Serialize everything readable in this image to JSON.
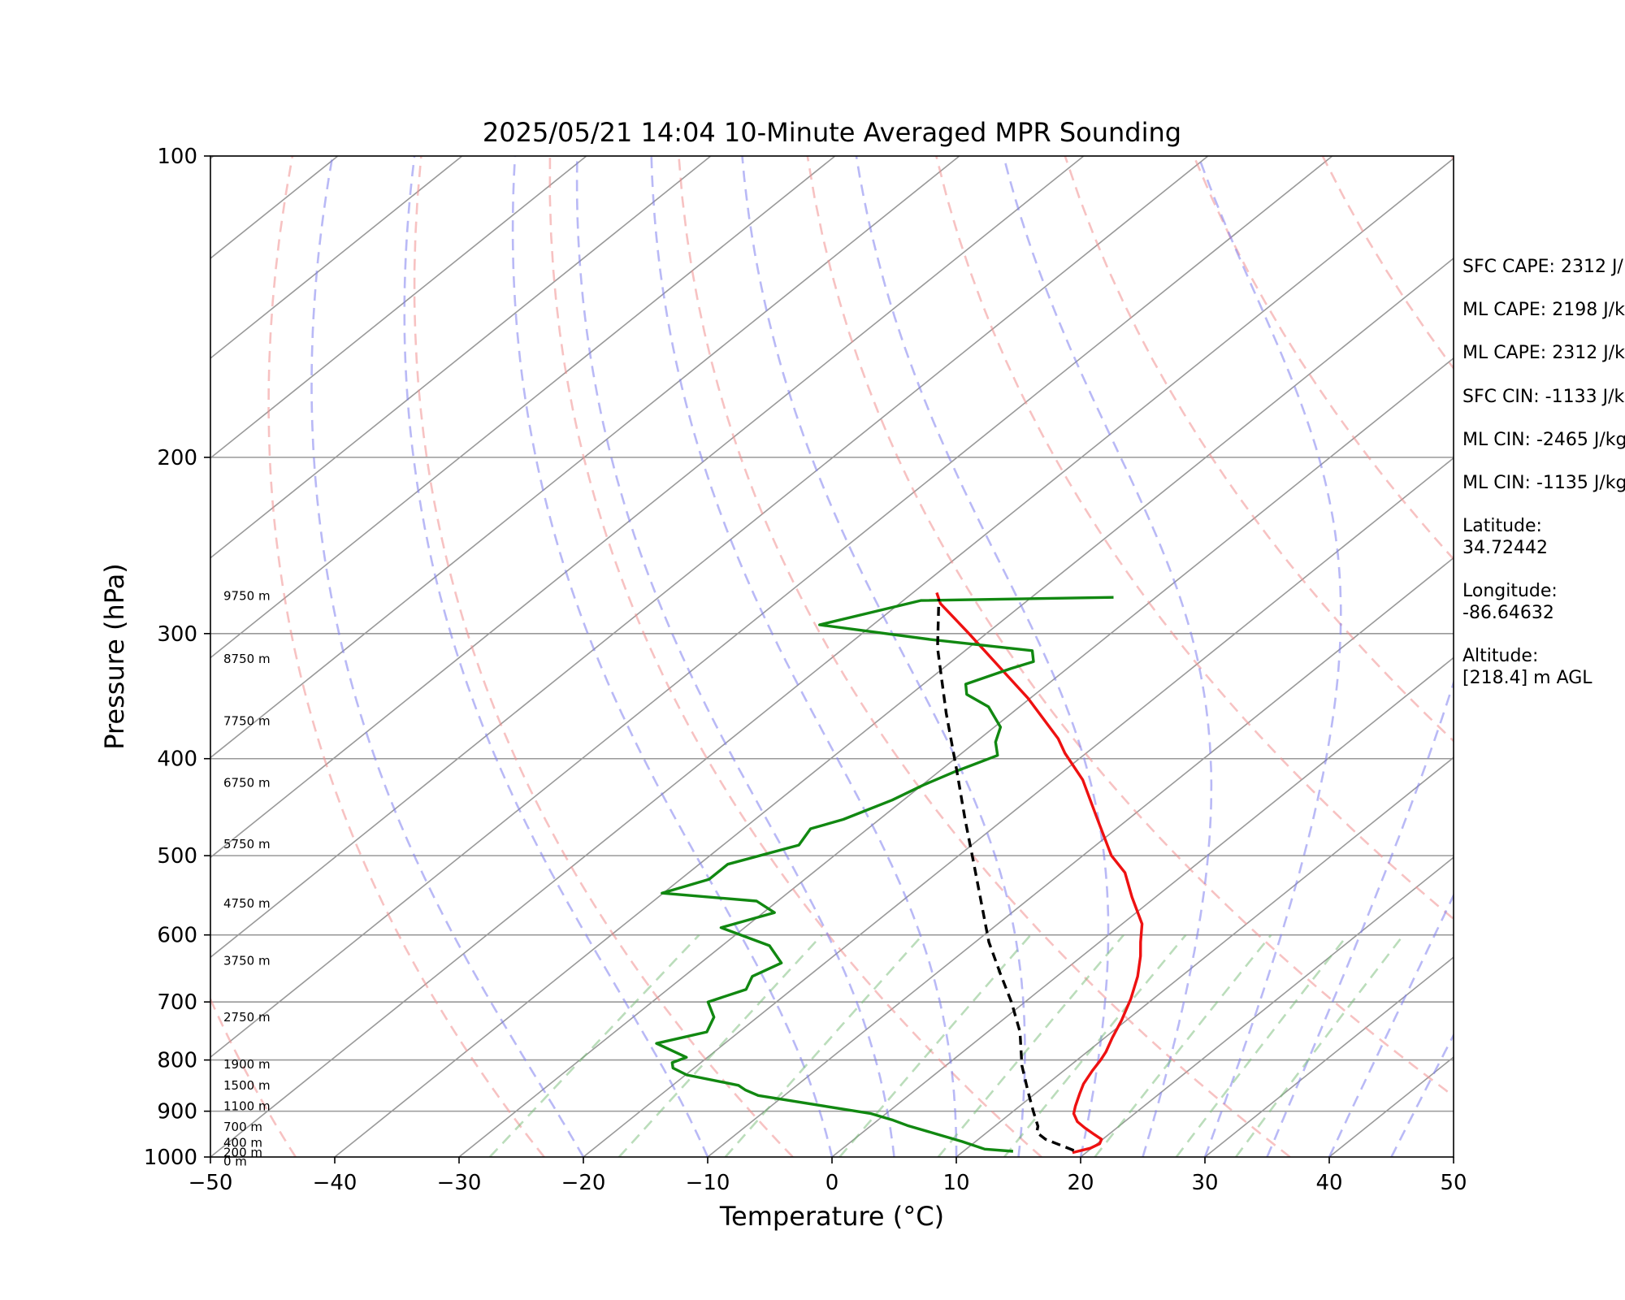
{
  "chart_data": {
    "type": "line",
    "title": "2025/05/21 14:04 10-Minute Averaged MPR Sounding",
    "xlabel": "Temperature (°C)",
    "ylabel": "Pressure (hPa)",
    "xlim": [
      -50,
      50
    ],
    "ylim": [
      1000,
      100
    ],
    "y_scale": "log",
    "x_ticks": [
      "−50",
      "−40",
      "−30",
      "−20",
      "−10",
      "0",
      "10",
      "20",
      "30",
      "40",
      "50"
    ],
    "y_ticks": [
      "100",
      "200",
      "300",
      "400",
      "500",
      "600",
      "700",
      "800",
      "900",
      "1000"
    ],
    "y_tick_values": [
      100,
      200,
      300,
      400,
      500,
      600,
      700,
      800,
      900,
      1000
    ],
    "grid": true,
    "skew": true,
    "height_labels": [
      {
        "text": "9750 m",
        "p": 275
      },
      {
        "text": "8750 m",
        "p": 318
      },
      {
        "text": "7750 m",
        "p": 367
      },
      {
        "text": "6750 m",
        "p": 423
      },
      {
        "text": "5750 m",
        "p": 487
      },
      {
        "text": "4750 m",
        "p": 558
      },
      {
        "text": "3750 m",
        "p": 637
      },
      {
        "text": "2750 m",
        "p": 725
      },
      {
        "text": "1900 m",
        "p": 808
      },
      {
        "text": "1500 m",
        "p": 848
      },
      {
        "text": "1100 m",
        "p": 890
      },
      {
        "text": "700 m",
        "p": 933
      },
      {
        "text": "400 m",
        "p": 968
      },
      {
        "text": "200 m",
        "p": 990
      },
      {
        "text": "0 m",
        "p": 1010
      }
    ],
    "series": [
      {
        "role": "temperature",
        "color": "#ee1111",
        "dash": "solid",
        "points": [
          [
            18.9,
            990
          ],
          [
            19.9,
            980
          ],
          [
            20.2,
            970
          ],
          [
            19.9,
            960
          ],
          [
            18.9,
            950
          ],
          [
            17.4,
            935
          ],
          [
            16.2,
            922
          ],
          [
            15.1,
            905
          ],
          [
            14.5,
            890
          ],
          [
            13.6,
            865
          ],
          [
            12.9,
            845
          ],
          [
            12.3,
            820
          ],
          [
            11.9,
            800
          ],
          [
            11.5,
            785
          ],
          [
            10.6,
            760
          ],
          [
            9.6,
            730
          ],
          [
            8.2,
            695
          ],
          [
            6.5,
            660
          ],
          [
            4.7,
            630
          ],
          [
            3.3,
            610
          ],
          [
            1.6,
            585
          ],
          [
            -1.9,
            550
          ],
          [
            -4.9,
            520
          ],
          [
            -7.7,
            500
          ],
          [
            -12.7,
            458
          ],
          [
            -17.6,
            420
          ],
          [
            -21.7,
            395
          ],
          [
            -23.7,
            382
          ],
          [
            -30.2,
            348
          ],
          [
            -34.9,
            327
          ],
          [
            -41.4,
            300
          ],
          [
            -44.0,
            290
          ],
          [
            -46.7,
            280
          ],
          [
            -48.1,
            273
          ]
        ]
      },
      {
        "role": "dewpoint",
        "color": "#118811",
        "dash": "solid",
        "points": [
          [
            14.0,
            987
          ],
          [
            11.5,
            982
          ],
          [
            8.9,
            965
          ],
          [
            2.9,
            930
          ],
          [
            1.1,
            918
          ],
          [
            -1.2,
            905
          ],
          [
            -12.1,
            868
          ],
          [
            -13.7,
            857
          ],
          [
            -14.7,
            848
          ],
          [
            -19.9,
            828
          ],
          [
            -21.7,
            815
          ],
          [
            -22.3,
            805
          ],
          [
            -21.7,
            795
          ],
          [
            -25.5,
            770
          ],
          [
            -22.6,
            750
          ],
          [
            -23.5,
            725
          ],
          [
            -25.5,
            700
          ],
          [
            -23.7,
            680
          ],
          [
            -24.5,
            660
          ],
          [
            -23.5,
            640
          ],
          [
            -26.2,
            615
          ],
          [
            -31.9,
            590
          ],
          [
            -29.1,
            570
          ],
          [
            -31.7,
            555
          ],
          [
            -40.1,
            545
          ],
          [
            -37.7,
            528
          ],
          [
            -37.7,
            510
          ],
          [
            -33.9,
            488
          ],
          [
            -34.6,
            470
          ],
          [
            -32.9,
            460
          ],
          [
            -30.9,
            440
          ],
          [
            -29.9,
            425
          ],
          [
            -28.7,
            412
          ],
          [
            -26.9,
            397
          ],
          [
            -28.4,
            385
          ],
          [
            -29.5,
            372
          ],
          [
            -32.5,
            355
          ],
          [
            -35.5,
            345
          ],
          [
            -36.6,
            337
          ],
          [
            -34.5,
            325
          ],
          [
            -33.4,
            320
          ],
          [
            -34.6,
            312
          ],
          [
            -44.0,
            304
          ],
          [
            -54.3,
            294
          ],
          [
            -48.6,
            278
          ],
          [
            -33.4,
            276
          ]
        ]
      },
      {
        "role": "parcel",
        "color": "#000000",
        "dash": "dashed",
        "points": [
          [
            18.8,
            985
          ],
          [
            15.4,
            960
          ],
          [
            14.0,
            945
          ],
          [
            13.5,
            932
          ],
          [
            11.6,
            900
          ],
          [
            9.2,
            860
          ],
          [
            6.1,
            810
          ],
          [
            2.6,
            750
          ],
          [
            -1.1,
            700
          ],
          [
            -4.9,
            655
          ],
          [
            -8.9,
            610
          ],
          [
            -13.2,
            560
          ],
          [
            -17.9,
            510
          ],
          [
            -23.1,
            460
          ],
          [
            -28.8,
            410
          ],
          [
            -35.3,
            360
          ],
          [
            -42.5,
            310
          ],
          [
            -47.3,
            277
          ]
        ]
      }
    ],
    "reference_lines": {
      "dry_adiabats_theta_K": [
        190,
        210,
        230,
        250,
        270,
        290,
        310,
        330,
        350,
        370,
        390,
        410,
        430,
        450,
        470
      ],
      "dry_adiabat_color": "#f09090",
      "moist_adiabats_start_C": [
        -20,
        -10,
        0,
        5,
        10,
        15,
        20,
        25,
        30,
        35,
        40,
        45
      ],
      "moist_adiabat_color": "#8080ee",
      "mixing_ratios_gkg": [
        0.4,
        1,
        2,
        4,
        7,
        10,
        16,
        24,
        32
      ],
      "mixing_ratio_color": "#77bb77",
      "isotherm_color": "#999999"
    }
  },
  "parameters": [
    {
      "label": "SFC CAPE: 2312 J/"
    },
    {
      "label": "ML CAPE: 2198 J/k"
    },
    {
      "label": "ML CAPE: 2312 J/k"
    },
    {
      "label": "SFC CIN: -1133 J/k"
    },
    {
      "label": "ML CIN: -2465 J/kg"
    },
    {
      "label": "ML CIN: -1135 J/kg"
    },
    {
      "label": "Latitude:",
      "value": "34.72442"
    },
    {
      "label": "Longitude:",
      "value": "-86.64632"
    },
    {
      "label": "Altitude:",
      "value": "[218.4] m AGL"
    }
  ]
}
